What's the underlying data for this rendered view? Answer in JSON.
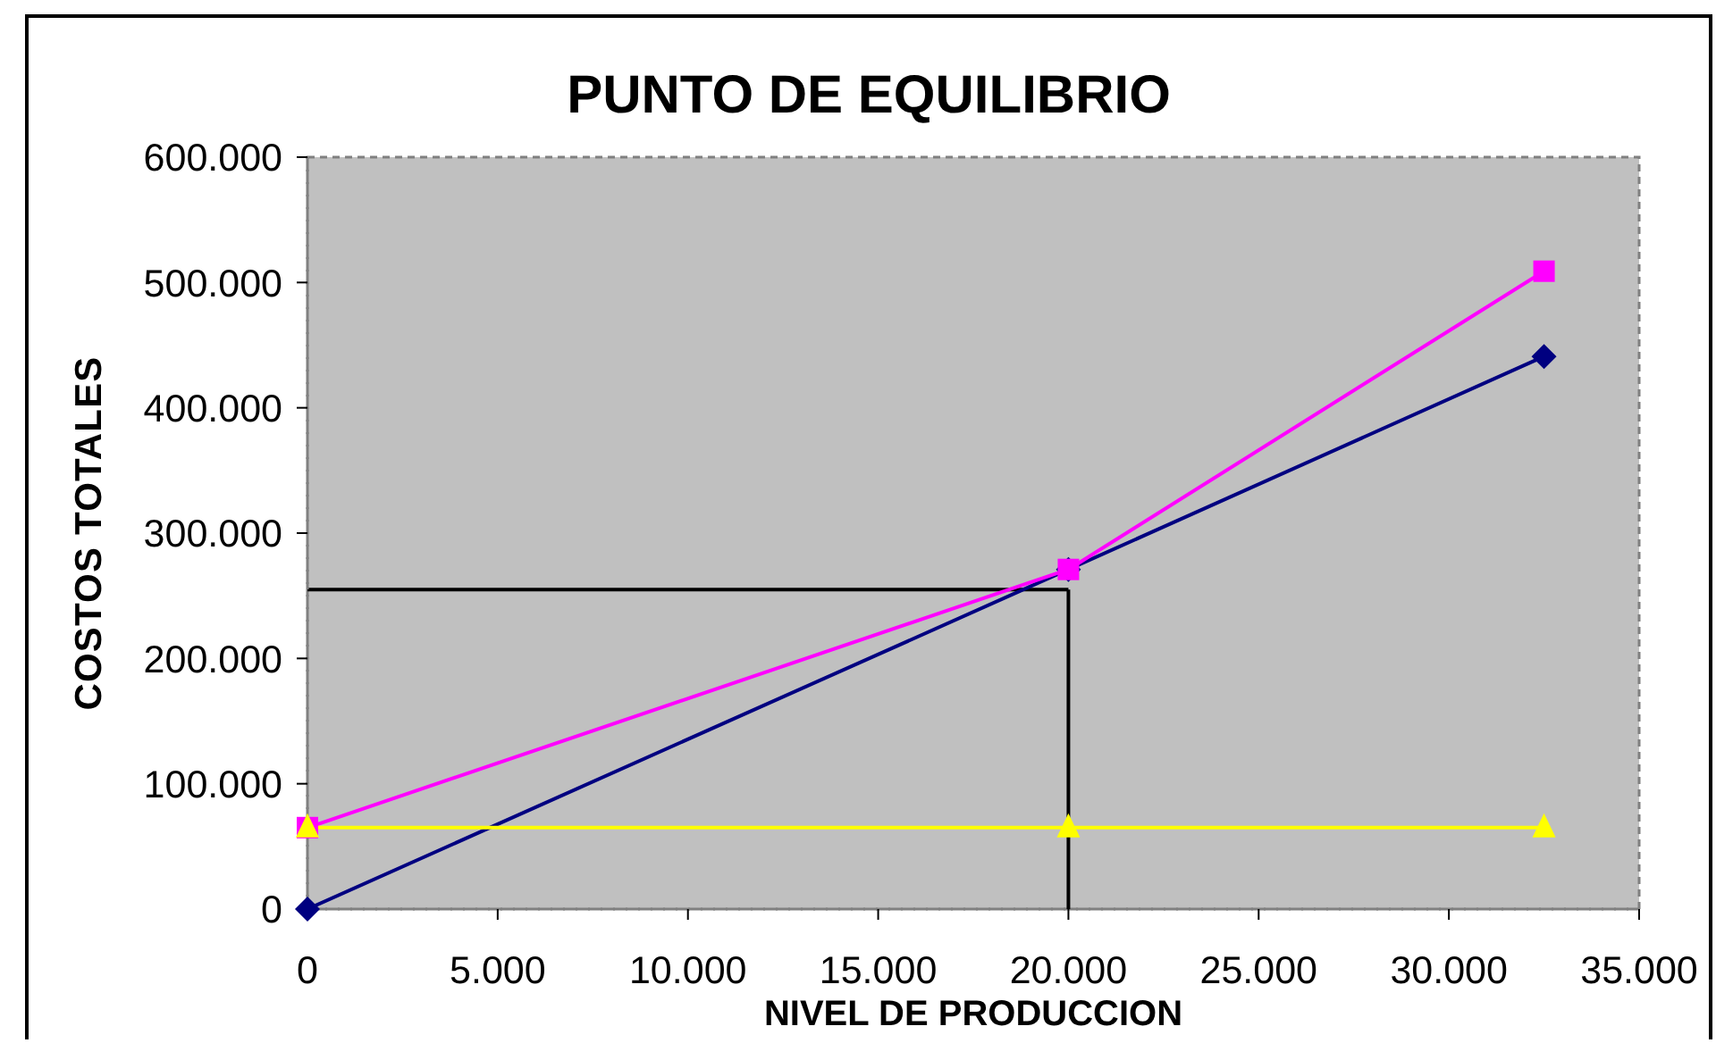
{
  "chart_data": {
    "type": "line",
    "title": "PUNTO DE EQUILIBRIO",
    "xlabel": "NIVEL DE PRODUCCION",
    "ylabel": "COSTOS TOTALES",
    "x": [
      0,
      20000,
      32500
    ],
    "series": [
      {
        "color": "#000080",
        "values": [
          0,
          271000,
          441000
        ],
        "marker": "diamond"
      },
      {
        "color": "#ff00ff",
        "values": [
          65000,
          271000,
          509000
        ],
        "marker": "square"
      },
      {
        "color": "#ffff00",
        "values": [
          65000,
          65000,
          65000
        ],
        "marker": "triangle"
      }
    ],
    "ref_lines": [
      {
        "axis": "y",
        "value": 255000,
        "color": "#000000"
      },
      {
        "axis": "x",
        "value": 20000,
        "color": "#000000"
      }
    ],
    "xlim": [
      0,
      35000
    ],
    "xticks": [
      0,
      {
        "value": 5000,
        "label": "5.000"
      },
      {
        "value": 10000,
        "label": "10.000"
      },
      {
        "value": 15000,
        "label": "15.000"
      },
      {
        "value": 20000,
        "label": "20.000"
      },
      {
        "value": 25000,
        "label": "25.000"
      },
      {
        "value": 30000,
        "label": "30.000"
      },
      {
        "value": 35000,
        "label": "35.000"
      }
    ],
    "ylim": [
      0,
      600000
    ],
    "yticks": [
      0,
      {
        "value": 100000,
        "label": "100.000"
      },
      {
        "value": 200000,
        "label": "200.000"
      },
      {
        "value": 300000,
        "label": "300.000"
      },
      {
        "value": 400000,
        "label": "400.000"
      },
      {
        "value": 500000,
        "label": "500.000"
      },
      {
        "value": 600000,
        "label": "600.000"
      }
    ]
  }
}
